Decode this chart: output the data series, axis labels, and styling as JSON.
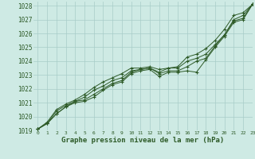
{
  "title": "Graphe pression niveau de la mer (hPa)",
  "bg_color": "#ceeae4",
  "grid_color": "#a8ccc8",
  "line_color": "#2d5a27",
  "marker_color": "#2d5a27",
  "xlim": [
    -0.5,
    23
  ],
  "ylim": [
    1019,
    1028.3
  ],
  "xticks": [
    0,
    1,
    2,
    3,
    4,
    5,
    6,
    7,
    8,
    9,
    10,
    11,
    12,
    13,
    14,
    15,
    16,
    17,
    18,
    19,
    20,
    21,
    22,
    23
  ],
  "yticks": [
    1019,
    1020,
    1021,
    1022,
    1023,
    1024,
    1025,
    1026,
    1027,
    1028
  ],
  "series": [
    [
      1019.1,
      1019.5,
      1020.2,
      1020.7,
      1021.0,
      1021.1,
      1021.4,
      1021.9,
      1022.3,
      1022.5,
      1023.1,
      1023.3,
      1023.4,
      1022.9,
      1023.2,
      1023.2,
      1023.3,
      1023.2,
      1024.1,
      1025.0,
      1025.8,
      1026.8,
      1027.0,
      1028.1
    ],
    [
      1019.1,
      1019.5,
      1020.2,
      1020.7,
      1021.1,
      1021.2,
      1021.6,
      1022.0,
      1022.4,
      1022.6,
      1023.2,
      1023.4,
      1023.5,
      1023.1,
      1023.3,
      1023.3,
      1023.6,
      1024.0,
      1024.2,
      1025.1,
      1025.9,
      1026.9,
      1027.1,
      1028.1
    ],
    [
      1019.1,
      1019.5,
      1020.4,
      1020.8,
      1021.1,
      1021.4,
      1021.9,
      1022.2,
      1022.6,
      1022.8,
      1023.3,
      1023.4,
      1023.5,
      1023.2,
      1023.5,
      1023.5,
      1024.0,
      1024.2,
      1024.5,
      1025.2,
      1025.9,
      1027.0,
      1027.3,
      1028.1
    ],
    [
      1019.1,
      1019.6,
      1020.5,
      1020.9,
      1021.2,
      1021.6,
      1022.1,
      1022.5,
      1022.8,
      1023.1,
      1023.5,
      1023.5,
      1023.6,
      1023.4,
      1023.5,
      1023.6,
      1024.3,
      1024.5,
      1024.9,
      1025.5,
      1026.3,
      1027.3,
      1027.5,
      1028.1
    ]
  ]
}
